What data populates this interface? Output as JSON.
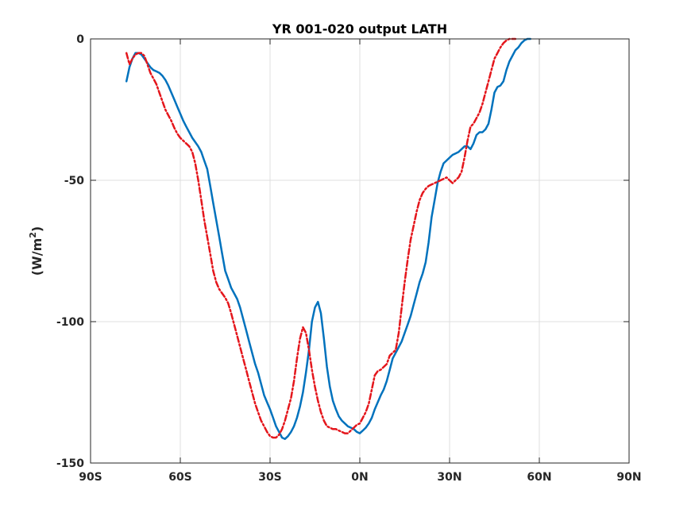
{
  "chart_data": {
    "type": "line",
    "title": "YR 001-020 output LATH",
    "xlabel": "",
    "ylabel": "(W/m",
    "ylabel_superscript": "2",
    "ylabel_suffix": ")",
    "xlim": [
      -90,
      90
    ],
    "ylim": [
      -150,
      0
    ],
    "grid": true,
    "x_ticks": [
      -90,
      -60,
      -30,
      0,
      30,
      60,
      90
    ],
    "x_tick_labels": [
      "90S",
      "60S",
      "30S",
      "0N",
      "30N",
      "60N",
      "90N"
    ],
    "y_ticks": [
      0,
      -50,
      -100,
      -150
    ],
    "y_tick_labels": [
      "0",
      "-50",
      "-100",
      "-150"
    ],
    "series": [
      {
        "color": "#0072bd",
        "style": "solid",
        "points": [
          [
            -78,
            -15
          ],
          [
            -77,
            -10
          ],
          [
            -76,
            -7
          ],
          [
            -75,
            -5
          ],
          [
            -74,
            -5
          ],
          [
            -73,
            -5.5
          ],
          [
            -72,
            -7
          ],
          [
            -71,
            -8.5
          ],
          [
            -70,
            -10
          ],
          [
            -69,
            -11
          ],
          [
            -68,
            -11.5
          ],
          [
            -67,
            -12
          ],
          [
            -66,
            -13
          ],
          [
            -65,
            -14.5
          ],
          [
            -64,
            -16.5
          ],
          [
            -63,
            -19
          ],
          [
            -62,
            -21.5
          ],
          [
            -61,
            -24
          ],
          [
            -60,
            -26.5
          ],
          [
            -59,
            -29
          ],
          [
            -58,
            -31
          ],
          [
            -57,
            -33
          ],
          [
            -56,
            -35
          ],
          [
            -55,
            -36.5
          ],
          [
            -54,
            -38
          ],
          [
            -53,
            -40
          ],
          [
            -52,
            -43
          ],
          [
            -51,
            -46
          ],
          [
            -50,
            -52
          ],
          [
            -49,
            -58
          ],
          [
            -48,
            -64
          ],
          [
            -47,
            -70
          ],
          [
            -46,
            -76
          ],
          [
            -45,
            -82
          ],
          [
            -44,
            -85
          ],
          [
            -43,
            -88
          ],
          [
            -42,
            -90
          ],
          [
            -41,
            -92
          ],
          [
            -40,
            -95
          ],
          [
            -39,
            -99
          ],
          [
            -38,
            -103
          ],
          [
            -37,
            -107
          ],
          [
            -36,
            -111
          ],
          [
            -35,
            -115
          ],
          [
            -34,
            -118
          ],
          [
            -33,
            -122
          ],
          [
            -32,
            -126
          ],
          [
            -31,
            -128.5
          ],
          [
            -30,
            -131
          ],
          [
            -29,
            -134
          ],
          [
            -28,
            -137
          ],
          [
            -27,
            -139
          ],
          [
            -26,
            -141
          ],
          [
            -25,
            -141.5
          ],
          [
            -24,
            -140.5
          ],
          [
            -23,
            -139
          ],
          [
            -22,
            -137
          ],
          [
            -21,
            -134
          ],
          [
            -20,
            -130
          ],
          [
            -19,
            -125
          ],
          [
            -18,
            -118
          ],
          [
            -17,
            -110
          ],
          [
            -16,
            -100
          ],
          [
            -15,
            -95
          ],
          [
            -14,
            -93
          ],
          [
            -13,
            -97
          ],
          [
            -12,
            -106
          ],
          [
            -11,
            -116
          ],
          [
            -10,
            -123
          ],
          [
            -9,
            -128
          ],
          [
            -8,
            -131
          ],
          [
            -7,
            -133.5
          ],
          [
            -6,
            -135
          ],
          [
            -5,
            -136
          ],
          [
            -4,
            -137
          ],
          [
            -3,
            -137.5
          ],
          [
            -2,
            -138
          ],
          [
            -1,
            -139
          ],
          [
            0,
            -139.5
          ],
          [
            1,
            -138.5
          ],
          [
            2,
            -137.5
          ],
          [
            3,
            -136
          ],
          [
            4,
            -134
          ],
          [
            5,
            -131
          ],
          [
            6,
            -128.5
          ],
          [
            7,
            -126
          ],
          [
            8,
            -124
          ],
          [
            9,
            -121
          ],
          [
            10,
            -117
          ],
          [
            11,
            -113
          ],
          [
            12,
            -111
          ],
          [
            13,
            -109
          ],
          [
            14,
            -107
          ],
          [
            15,
            -104
          ],
          [
            16,
            -101
          ],
          [
            17,
            -98
          ],
          [
            18,
            -94
          ],
          [
            19,
            -90
          ],
          [
            20,
            -86
          ],
          [
            21,
            -83
          ],
          [
            22,
            -79
          ],
          [
            23,
            -72
          ],
          [
            24,
            -63
          ],
          [
            25,
            -57
          ],
          [
            26,
            -51
          ],
          [
            27,
            -47
          ],
          [
            28,
            -44
          ],
          [
            29,
            -43
          ],
          [
            30,
            -42
          ],
          [
            31,
            -41
          ],
          [
            32,
            -40.5
          ],
          [
            33,
            -40
          ],
          [
            34,
            -39
          ],
          [
            35,
            -38
          ],
          [
            36,
            -38
          ],
          [
            37,
            -39
          ],
          [
            38,
            -37
          ],
          [
            39,
            -34
          ],
          [
            40,
            -33
          ],
          [
            41,
            -33
          ],
          [
            42,
            -32
          ],
          [
            43,
            -30
          ],
          [
            44,
            -25
          ],
          [
            45,
            -19
          ],
          [
            46,
            -17
          ],
          [
            47,
            -16.5
          ],
          [
            48,
            -15
          ],
          [
            49,
            -11
          ],
          [
            50,
            -8
          ],
          [
            51,
            -6
          ],
          [
            52,
            -4
          ],
          [
            53,
            -3
          ],
          [
            54,
            -1.5
          ],
          [
            55,
            -0.5
          ],
          [
            56,
            0
          ],
          [
            57,
            0
          ]
        ]
      },
      {
        "color": "#e4161c",
        "style": "dashdot",
        "points": [
          [
            -78,
            -5
          ],
          [
            -77,
            -9
          ],
          [
            -76,
            -7
          ],
          [
            -75,
            -5.5
          ],
          [
            -74,
            -5
          ],
          [
            -73,
            -5
          ],
          [
            -72,
            -6
          ],
          [
            -71,
            -9
          ],
          [
            -70,
            -12
          ],
          [
            -69,
            -14
          ],
          [
            -68,
            -16
          ],
          [
            -67,
            -19
          ],
          [
            -66,
            -22
          ],
          [
            -65,
            -25
          ],
          [
            -64,
            -27
          ],
          [
            -63,
            -29
          ],
          [
            -62,
            -31.5
          ],
          [
            -61,
            -33.5
          ],
          [
            -60,
            -35
          ],
          [
            -59,
            -36
          ],
          [
            -58,
            -37
          ],
          [
            -57,
            -38
          ],
          [
            -56,
            -40
          ],
          [
            -55,
            -44
          ],
          [
            -54,
            -50
          ],
          [
            -53,
            -57
          ],
          [
            -52,
            -64
          ],
          [
            -51,
            -70
          ],
          [
            -50,
            -76
          ],
          [
            -49,
            -82
          ],
          [
            -48,
            -86
          ],
          [
            -47,
            -88.5
          ],
          [
            -46,
            -90
          ],
          [
            -45,
            -91.5
          ],
          [
            -44,
            -93.5
          ],
          [
            -43,
            -97
          ],
          [
            -42,
            -101
          ],
          [
            -41,
            -105
          ],
          [
            -40,
            -109
          ],
          [
            -39,
            -113
          ],
          [
            -38,
            -117
          ],
          [
            -37,
            -121
          ],
          [
            -36,
            -125
          ],
          [
            -35,
            -129
          ],
          [
            -34,
            -132
          ],
          [
            -33,
            -135
          ],
          [
            -32,
            -137
          ],
          [
            -31,
            -139
          ],
          [
            -30,
            -140.5
          ],
          [
            -29,
            -141
          ],
          [
            -28,
            -141
          ],
          [
            -27,
            -140
          ],
          [
            -26,
            -138
          ],
          [
            -25,
            -135
          ],
          [
            -24,
            -131
          ],
          [
            -23,
            -127
          ],
          [
            -22,
            -121
          ],
          [
            -21,
            -113
          ],
          [
            -20,
            -106
          ],
          [
            -19,
            -102
          ],
          [
            -18,
            -104
          ],
          [
            -17,
            -110
          ],
          [
            -16,
            -117
          ],
          [
            -15,
            -123
          ],
          [
            -14,
            -128
          ],
          [
            -13,
            -132
          ],
          [
            -12,
            -135
          ],
          [
            -11,
            -137
          ],
          [
            -10,
            -137.5
          ],
          [
            -9,
            -138
          ],
          [
            -8,
            -138
          ],
          [
            -7,
            -138.5
          ],
          [
            -6,
            -139
          ],
          [
            -5,
            -139.5
          ],
          [
            -4,
            -139.5
          ],
          [
            -3,
            -138.5
          ],
          [
            -2,
            -137.5
          ],
          [
            -1,
            -136.5
          ],
          [
            0,
            -136
          ],
          [
            1,
            -134
          ],
          [
            2,
            -132
          ],
          [
            3,
            -129
          ],
          [
            4,
            -124
          ],
          [
            5,
            -119
          ],
          [
            6,
            -117.5
          ],
          [
            7,
            -117
          ],
          [
            8,
            -116
          ],
          [
            9,
            -115
          ],
          [
            10,
            -112
          ],
          [
            11,
            -111
          ],
          [
            12,
            -110
          ],
          [
            13,
            -104
          ],
          [
            14,
            -95
          ],
          [
            15,
            -86
          ],
          [
            16,
            -78
          ],
          [
            17,
            -71
          ],
          [
            18,
            -66
          ],
          [
            19,
            -61
          ],
          [
            20,
            -57
          ],
          [
            21,
            -54.5
          ],
          [
            22,
            -53
          ],
          [
            23,
            -52
          ],
          [
            24,
            -51.5
          ],
          [
            25,
            -51
          ],
          [
            26,
            -50.5
          ],
          [
            27,
            -50
          ],
          [
            28,
            -49.5
          ],
          [
            29,
            -49
          ],
          [
            30,
            -50
          ],
          [
            31,
            -51
          ],
          [
            32,
            -50
          ],
          [
            33,
            -49
          ],
          [
            34,
            -47
          ],
          [
            35,
            -42
          ],
          [
            36,
            -36
          ],
          [
            37,
            -31
          ],
          [
            38,
            -30
          ],
          [
            39,
            -28
          ],
          [
            40,
            -26
          ],
          [
            41,
            -23
          ],
          [
            42,
            -19
          ],
          [
            43,
            -15
          ],
          [
            44,
            -11
          ],
          [
            45,
            -7
          ],
          [
            46,
            -5
          ],
          [
            47,
            -3
          ],
          [
            48,
            -1.5
          ],
          [
            49,
            -0.5
          ],
          [
            50,
            0
          ],
          [
            51,
            0
          ],
          [
            52,
            0
          ]
        ]
      }
    ]
  }
}
